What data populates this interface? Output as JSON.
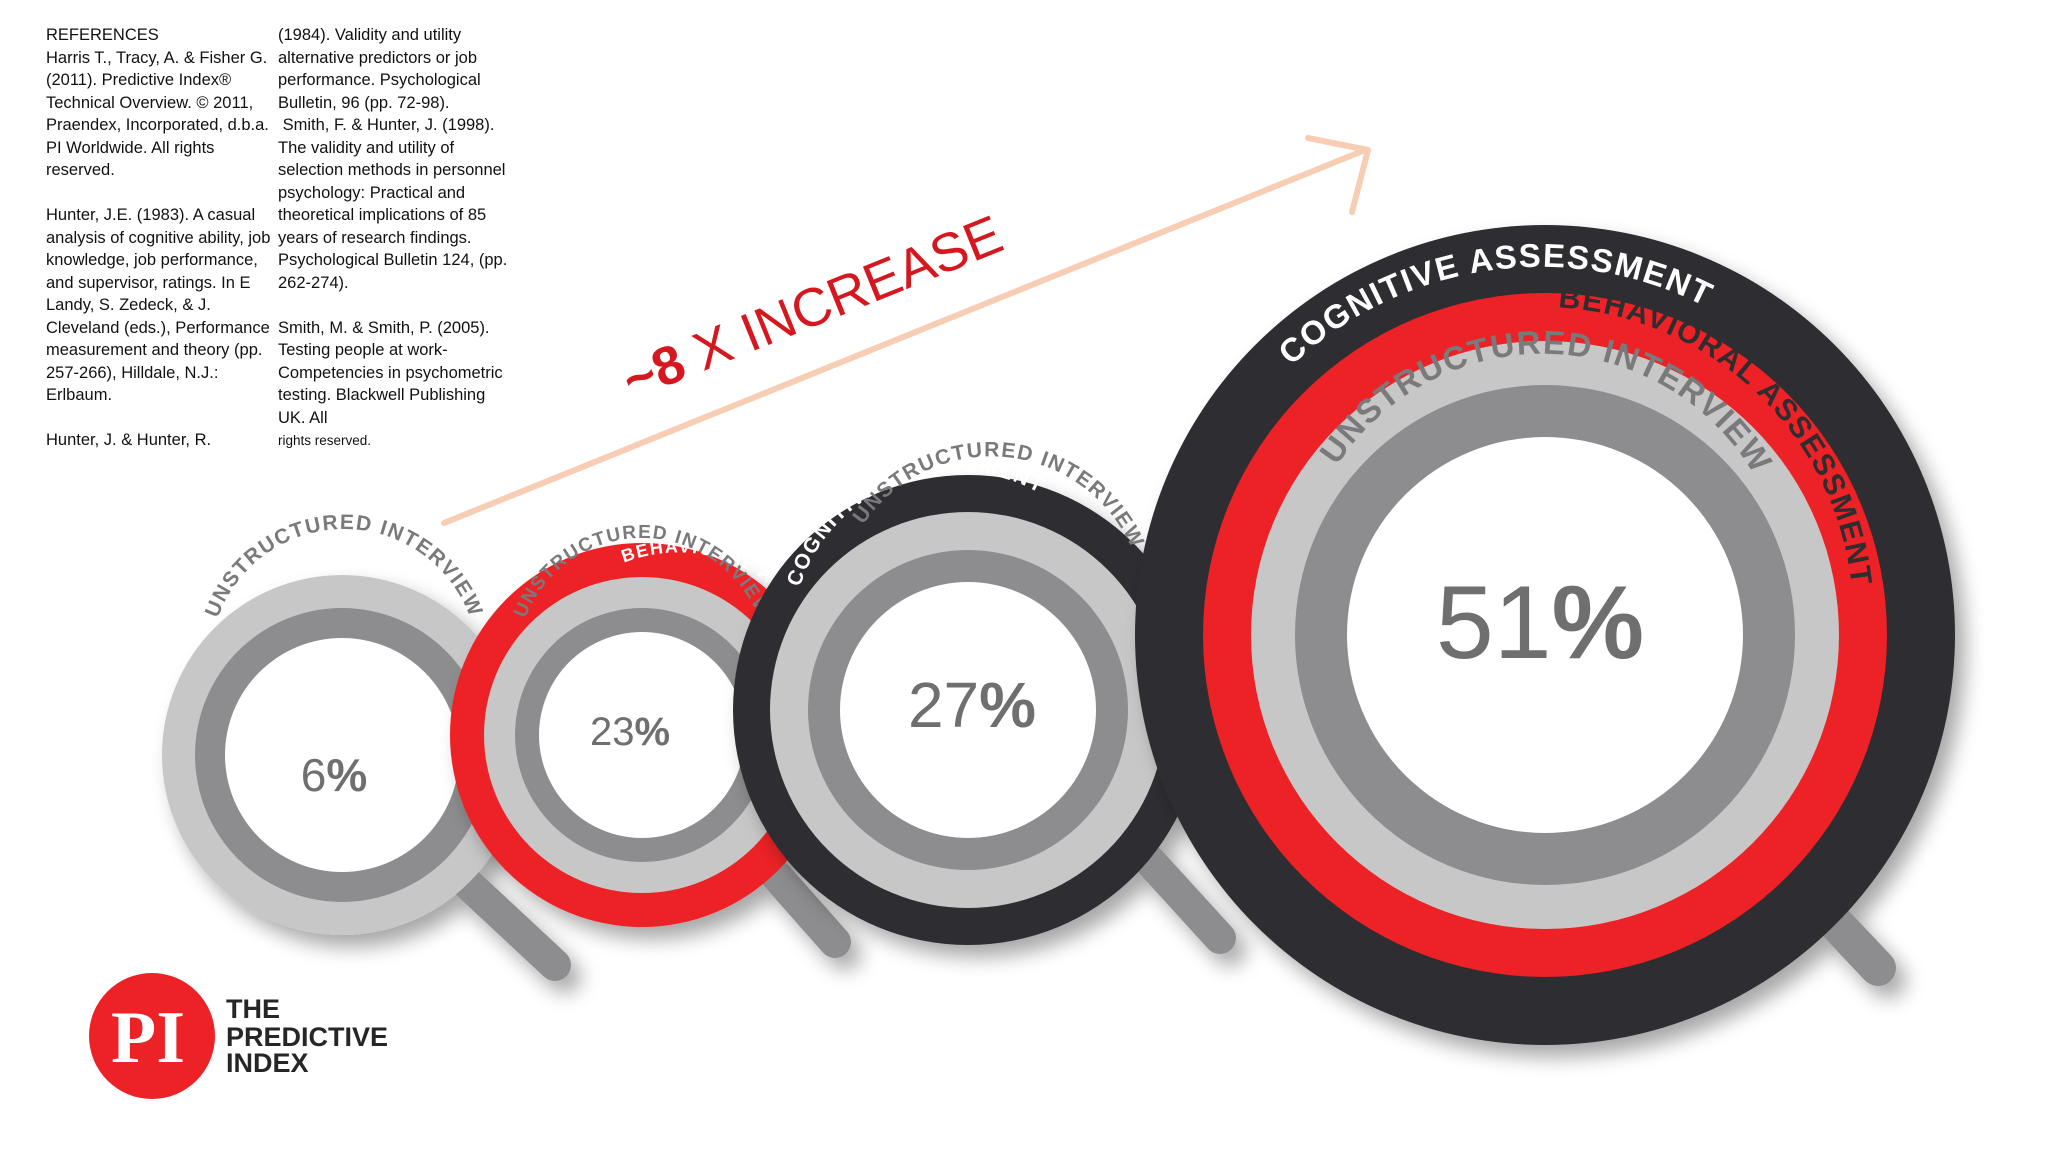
{
  "references": {
    "heading": "REFERENCES",
    "col1": "Harris T., Tracy, A. & Fisher G. (2011). Predictive Index® Technical Overview. © 2011, Praendex, Incorporated, d.b.a. PI Worldwide. All rights reserved.\n\nHunter, J.E. (1983). A casual analysis of cognitive ability, job knowledge, job performance, and supervisor, ratings. In E Landy, S. Zedeck, & J. Cleveland (eds.), Performance measurement and theory (pp. 257-266), Hilldale, N.J.: Erlbaum.\n\nHunter, J. & Hunter, R.",
    "col2": "(1984). Validity and utility alternative predictors or job performance. Psychological Bulletin, 96 (pp. 72-98).\n Smith, F. & Hunter, J. (1998). The validity and utility of selection methods in personnel psychology: Practical and theoretical implications of 85 years of research findings. Psychological Bulletin 124, (pp. 262-274).\n\nSmith, M. & Smith, P. (2005). Testing people at work- Competencies in psychometric testing. Blackwell Publishing UK. All",
    "col2_small": "rights reserved."
  },
  "headline": {
    "tilde_eight": "~8",
    "rest": " X  INCREASE"
  },
  "rings": {
    "unstructured": "UNSTRUCTURED INTERVIEW",
    "behavioral": "BEHAVIORAL ASSESSMENT",
    "cognitive": "COGNITIVE ASSESSMENT"
  },
  "magnifiers": [
    {
      "value": "6",
      "sign": "%"
    },
    {
      "value": "23",
      "sign": "%"
    },
    {
      "value": "27",
      "sign": "%"
    },
    {
      "value": "51",
      "sign": "%"
    }
  ],
  "logo": {
    "mark": "PI",
    "line1": "THE",
    "line2": "PREDICTIVE",
    "line3": "INDEX"
  },
  "colors": {
    "red": "#ec2227",
    "dark": "#2e2d30",
    "light_gray": "#c8c7c8",
    "mid_gray": "#8d8c8e",
    "arrow": "#f7cdb4"
  }
}
